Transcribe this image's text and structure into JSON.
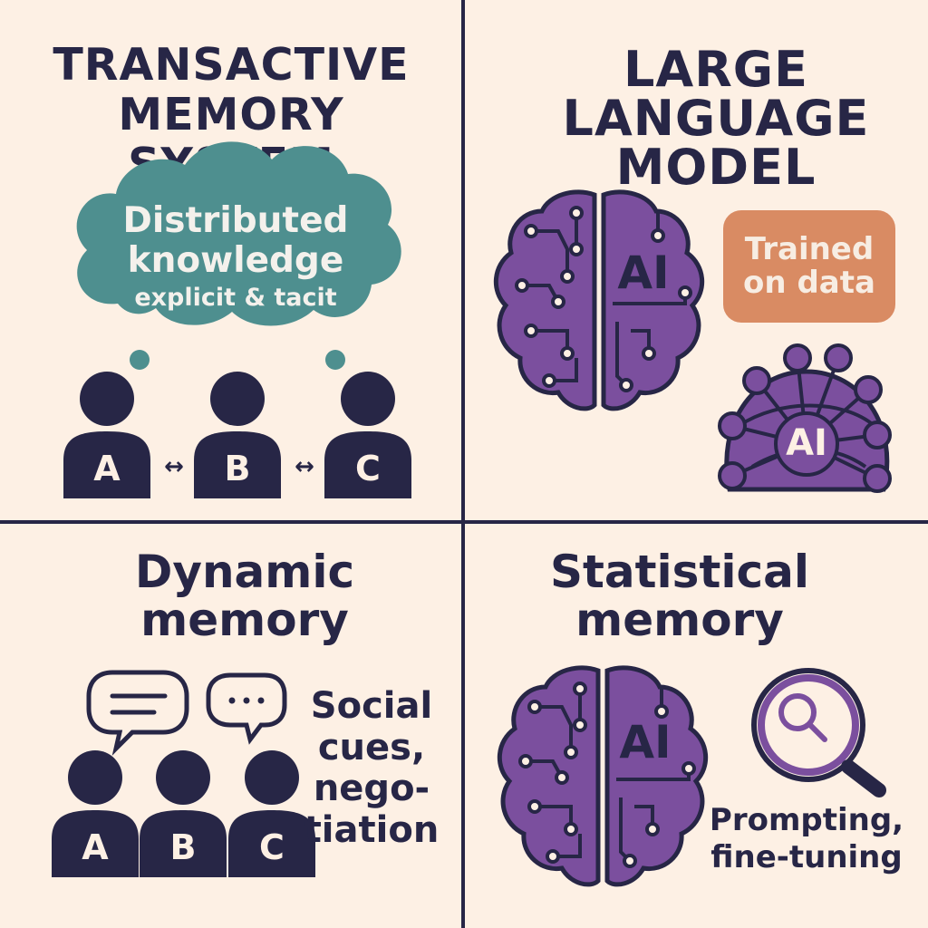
{
  "panels": {
    "transactive": {
      "title_lines": [
        "TRANSACTIVE",
        "MEMORY SYSTEM"
      ],
      "cloud_lines": [
        "Distributed",
        "knowledge",
        "explicit & tacit"
      ],
      "people": [
        "A",
        "B",
        "C"
      ],
      "arrow_symbol": "↔"
    },
    "llm": {
      "title_lines": [
        "LARGE",
        "LANGUAGE",
        "MODEL"
      ],
      "brain_label": "AI",
      "badge_lines": [
        "Trained",
        "on data"
      ],
      "network_label": "AI"
    },
    "dynamic": {
      "title_lines": [
        "Dynamic",
        "memory"
      ],
      "people": [
        "A",
        "B",
        "C"
      ],
      "bubble_dots": "•••",
      "note_lines": [
        "Social",
        "cues,",
        "nego-",
        "tiation"
      ]
    },
    "statistical": {
      "title_lines": [
        "Statistical",
        "memory"
      ],
      "brain_label": "AI",
      "note_lines": [
        "Prompting,",
        "fine-tuning"
      ]
    }
  },
  "colors": {
    "background": "#fdf0e4",
    "ink": "#272646",
    "teal": "#4e8f8f",
    "purple": "#7b4f9e",
    "orange": "#d98b63"
  }
}
